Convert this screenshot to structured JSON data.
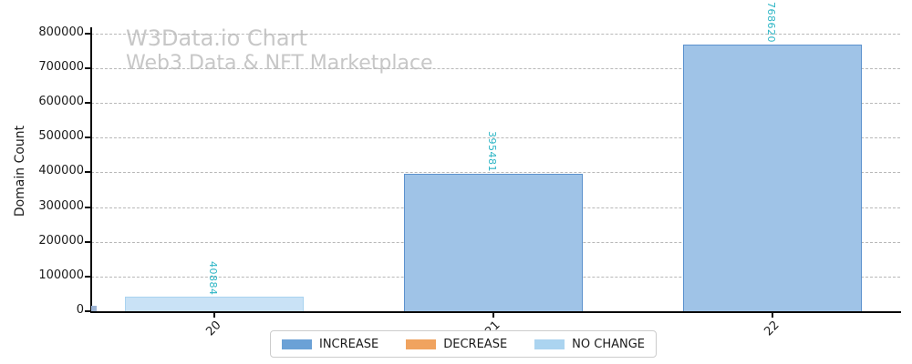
{
  "watermark": {
    "title": "W3Data.io Chart",
    "subtitle": "Web3 Data & NFT Marketplace"
  },
  "chart_data": {
    "type": "bar",
    "title": "W3Data.io Chart",
    "subtitle": "Web3 Data & NFT Marketplace",
    "xlabel": "",
    "ylabel": "Domain Count",
    "categories": [
      "20",
      "21",
      "22"
    ],
    "values": [
      40884,
      395481,
      768620
    ],
    "value_labels": [
      "40884",
      "395481",
      "768620"
    ],
    "bar_series": [
      "NO CHANGE",
      "INCREASE",
      "INCREASE"
    ],
    "series_styles": {
      "INCREASE": {
        "legend_color": "#6ba1d6",
        "fill": "#9fc3e7",
        "edge": "#5b91cd"
      },
      "DECREASE": {
        "legend_color": "#f0a35f",
        "fill": "#f6c596",
        "edge": "#e8903f"
      },
      "NO CHANGE": {
        "legend_color": "#abd4f0",
        "fill": "#c9e2f6",
        "edge": "#a9d3f0"
      }
    },
    "legend_entries": [
      "INCREASE",
      "DECREASE",
      "NO CHANGE"
    ],
    "value_label_color": "#2cb5c5",
    "ylim": [
      0,
      818000
    ],
    "yticks": [
      0,
      100000,
      200000,
      300000,
      400000,
      500000,
      600000,
      700000,
      800000
    ],
    "grid": "horizontal-dashed",
    "legend_position": "bottom-center"
  }
}
